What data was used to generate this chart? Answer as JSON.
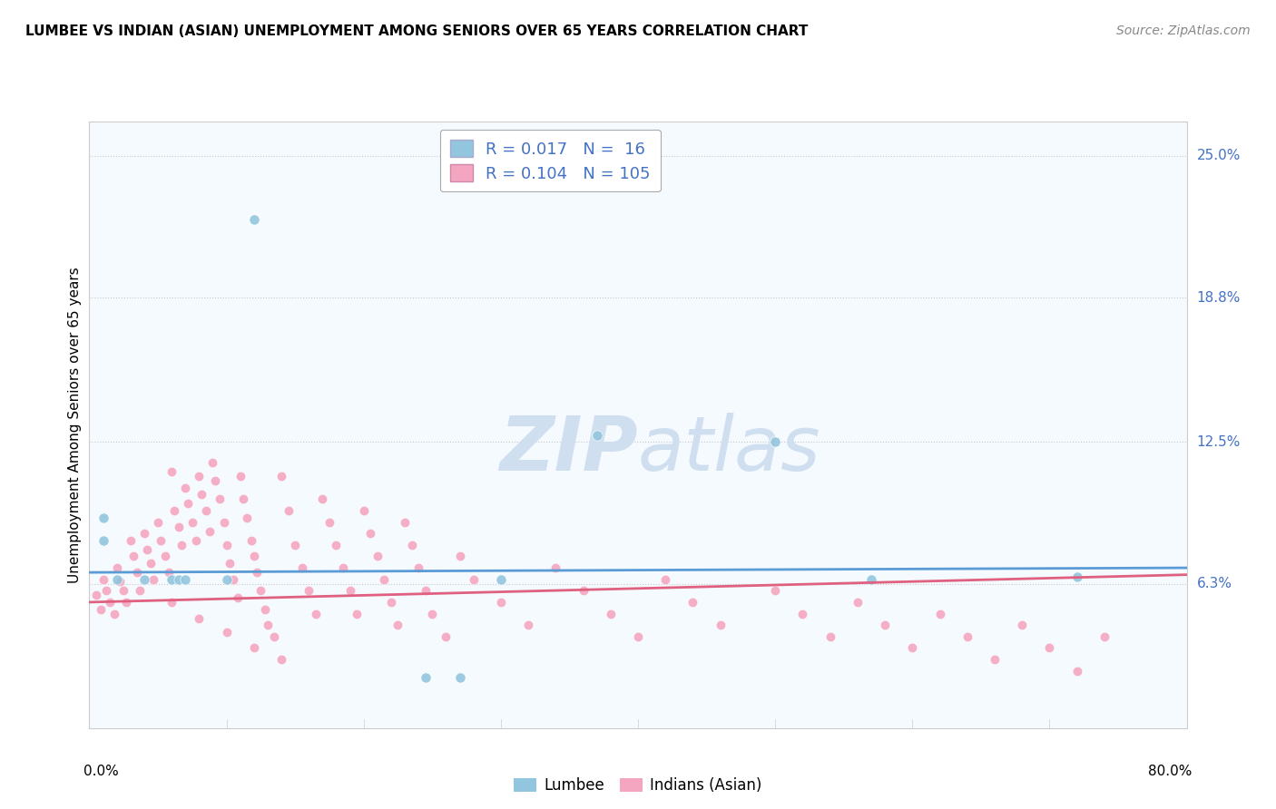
{
  "title": "LUMBEE VS INDIAN (ASIAN) UNEMPLOYMENT AMONG SENIORS OVER 65 YEARS CORRELATION CHART",
  "source": "Source: ZipAtlas.com",
  "ylabel": "Unemployment Among Seniors over 65 years",
  "lumbee_R": 0.017,
  "lumbee_N": 16,
  "asian_R": 0.104,
  "asian_N": 105,
  "lumbee_color": "#92c5de",
  "asian_color": "#f4a6c0",
  "lumbee_line_color": "#5b9bd5",
  "asian_line_color": "#e06080",
  "grid_color": "#c8c8c8",
  "background_color": "#ffffff",
  "plot_bg_color": "#f5faff",
  "ytick_vals": [
    0.063,
    0.125,
    0.188,
    0.25
  ],
  "ytick_labels": [
    "6.3%",
    "12.5%",
    "18.8%",
    "25.0%"
  ],
  "xlim": [
    0.0,
    0.8
  ],
  "ylim": [
    0.0,
    0.265
  ],
  "watermark_color": "#d0dff0",
  "lumbee_x": [
    0.01,
    0.01,
    0.02,
    0.04,
    0.06,
    0.065,
    0.07,
    0.1,
    0.12,
    0.245,
    0.37,
    0.5,
    0.57,
    0.72,
    0.27,
    0.3
  ],
  "lumbee_y": [
    0.092,
    0.082,
    0.065,
    0.065,
    0.065,
    0.065,
    0.065,
    0.065,
    0.222,
    0.022,
    0.128,
    0.125,
    0.065,
    0.066,
    0.022,
    0.065
  ],
  "asian_x": [
    0.005,
    0.008,
    0.01,
    0.012,
    0.015,
    0.018,
    0.02,
    0.022,
    0.025,
    0.027,
    0.03,
    0.032,
    0.035,
    0.037,
    0.04,
    0.042,
    0.045,
    0.047,
    0.05,
    0.052,
    0.055,
    0.058,
    0.06,
    0.062,
    0.065,
    0.067,
    0.07,
    0.072,
    0.075,
    0.078,
    0.08,
    0.082,
    0.085,
    0.088,
    0.09,
    0.092,
    0.095,
    0.098,
    0.1,
    0.102,
    0.105,
    0.108,
    0.11,
    0.112,
    0.115,
    0.118,
    0.12,
    0.122,
    0.125,
    0.128,
    0.13,
    0.135,
    0.14,
    0.145,
    0.15,
    0.155,
    0.16,
    0.165,
    0.17,
    0.175,
    0.18,
    0.185,
    0.19,
    0.195,
    0.2,
    0.205,
    0.21,
    0.215,
    0.22,
    0.225,
    0.23,
    0.235,
    0.24,
    0.245,
    0.25,
    0.26,
    0.27,
    0.28,
    0.3,
    0.32,
    0.34,
    0.36,
    0.38,
    0.4,
    0.42,
    0.44,
    0.46,
    0.5,
    0.52,
    0.54,
    0.56,
    0.58,
    0.6,
    0.62,
    0.64,
    0.66,
    0.68,
    0.7,
    0.72,
    0.74,
    0.06,
    0.08,
    0.1,
    0.12,
    0.14
  ],
  "asian_y": [
    0.058,
    0.052,
    0.065,
    0.06,
    0.055,
    0.05,
    0.07,
    0.064,
    0.06,
    0.055,
    0.082,
    0.075,
    0.068,
    0.06,
    0.085,
    0.078,
    0.072,
    0.065,
    0.09,
    0.082,
    0.075,
    0.068,
    0.112,
    0.095,
    0.088,
    0.08,
    0.105,
    0.098,
    0.09,
    0.082,
    0.11,
    0.102,
    0.095,
    0.086,
    0.116,
    0.108,
    0.1,
    0.09,
    0.08,
    0.072,
    0.065,
    0.057,
    0.11,
    0.1,
    0.092,
    0.082,
    0.075,
    0.068,
    0.06,
    0.052,
    0.045,
    0.04,
    0.11,
    0.095,
    0.08,
    0.07,
    0.06,
    0.05,
    0.1,
    0.09,
    0.08,
    0.07,
    0.06,
    0.05,
    0.095,
    0.085,
    0.075,
    0.065,
    0.055,
    0.045,
    0.09,
    0.08,
    0.07,
    0.06,
    0.05,
    0.04,
    0.075,
    0.065,
    0.055,
    0.045,
    0.07,
    0.06,
    0.05,
    0.04,
    0.065,
    0.055,
    0.045,
    0.06,
    0.05,
    0.04,
    0.055,
    0.045,
    0.035,
    0.05,
    0.04,
    0.03,
    0.045,
    0.035,
    0.025,
    0.04,
    0.055,
    0.048,
    0.042,
    0.035,
    0.03
  ]
}
